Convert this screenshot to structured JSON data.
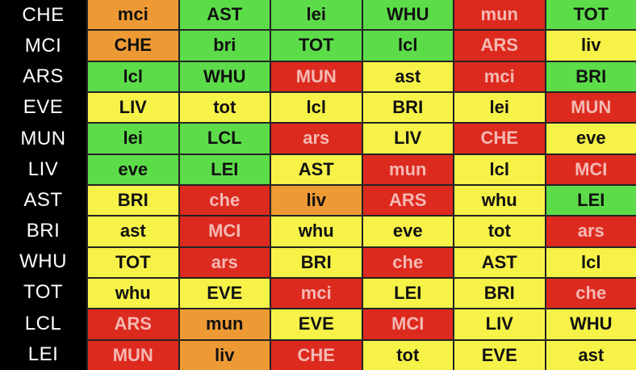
{
  "colors": {
    "green": "#5ddc4a",
    "yellow": "#f7f248",
    "red": "#dd2a1e",
    "orange": "#ee9a34",
    "sidebar": "#000000"
  },
  "teams": [
    "CHE",
    "MCI",
    "ARS",
    "EVE",
    "MUN",
    "LIV",
    "AST",
    "BRI",
    "WHU",
    "TOT",
    "LCL",
    "LEI"
  ],
  "rows": [
    [
      {
        "t": "mci",
        "c": "orange"
      },
      {
        "t": "AST",
        "c": "green"
      },
      {
        "t": "lei",
        "c": "green"
      },
      {
        "t": "WHU",
        "c": "green"
      },
      {
        "t": "mun",
        "c": "red"
      },
      {
        "t": "TOT",
        "c": "green"
      }
    ],
    [
      {
        "t": "CHE",
        "c": "orange"
      },
      {
        "t": "bri",
        "c": "green"
      },
      {
        "t": "TOT",
        "c": "green"
      },
      {
        "t": "lcl",
        "c": "green"
      },
      {
        "t": "ARS",
        "c": "red"
      },
      {
        "t": "liv",
        "c": "yellow"
      }
    ],
    [
      {
        "t": "lcl",
        "c": "green"
      },
      {
        "t": "WHU",
        "c": "green"
      },
      {
        "t": "MUN",
        "c": "red"
      },
      {
        "t": "ast",
        "c": "yellow"
      },
      {
        "t": "mci",
        "c": "red"
      },
      {
        "t": "BRI",
        "c": "green"
      }
    ],
    [
      {
        "t": "LIV",
        "c": "yellow"
      },
      {
        "t": "tot",
        "c": "yellow"
      },
      {
        "t": "lcl",
        "c": "yellow"
      },
      {
        "t": "BRI",
        "c": "yellow"
      },
      {
        "t": "lei",
        "c": "yellow"
      },
      {
        "t": "MUN",
        "c": "red"
      }
    ],
    [
      {
        "t": "lei",
        "c": "green"
      },
      {
        "t": "LCL",
        "c": "green"
      },
      {
        "t": "ars",
        "c": "red"
      },
      {
        "t": "LIV",
        "c": "yellow"
      },
      {
        "t": "CHE",
        "c": "red"
      },
      {
        "t": "eve",
        "c": "yellow"
      }
    ],
    [
      {
        "t": "eve",
        "c": "green"
      },
      {
        "t": "LEI",
        "c": "green"
      },
      {
        "t": "AST",
        "c": "yellow"
      },
      {
        "t": "mun",
        "c": "red"
      },
      {
        "t": "lcl",
        "c": "yellow"
      },
      {
        "t": "MCI",
        "c": "red"
      }
    ],
    [
      {
        "t": "BRI",
        "c": "yellow"
      },
      {
        "t": "che",
        "c": "red"
      },
      {
        "t": "liv",
        "c": "orange"
      },
      {
        "t": "ARS",
        "c": "red"
      },
      {
        "t": "whu",
        "c": "yellow"
      },
      {
        "t": "LEI",
        "c": "green"
      }
    ],
    [
      {
        "t": "ast",
        "c": "yellow"
      },
      {
        "t": "MCI",
        "c": "red"
      },
      {
        "t": "whu",
        "c": "yellow"
      },
      {
        "t": "eve",
        "c": "yellow"
      },
      {
        "t": "tot",
        "c": "yellow"
      },
      {
        "t": "ars",
        "c": "red"
      }
    ],
    [
      {
        "t": "TOT",
        "c": "yellow"
      },
      {
        "t": "ars",
        "c": "red"
      },
      {
        "t": "BRI",
        "c": "yellow"
      },
      {
        "t": "che",
        "c": "red"
      },
      {
        "t": "AST",
        "c": "yellow"
      },
      {
        "t": "lcl",
        "c": "yellow"
      }
    ],
    [
      {
        "t": "whu",
        "c": "yellow"
      },
      {
        "t": "EVE",
        "c": "yellow"
      },
      {
        "t": "mci",
        "c": "red"
      },
      {
        "t": "LEI",
        "c": "yellow"
      },
      {
        "t": "BRI",
        "c": "yellow"
      },
      {
        "t": "che",
        "c": "red"
      }
    ],
    [
      {
        "t": "ARS",
        "c": "red"
      },
      {
        "t": "mun",
        "c": "orange"
      },
      {
        "t": "EVE",
        "c": "yellow"
      },
      {
        "t": "MCI",
        "c": "red"
      },
      {
        "t": "LIV",
        "c": "yellow"
      },
      {
        "t": "WHU",
        "c": "yellow"
      }
    ],
    [
      {
        "t": "MUN",
        "c": "red"
      },
      {
        "t": "liv",
        "c": "orange"
      },
      {
        "t": "CHE",
        "c": "red"
      },
      {
        "t": "tot",
        "c": "yellow"
      },
      {
        "t": "EVE",
        "c": "yellow"
      },
      {
        "t": "ast",
        "c": "yellow"
      }
    ]
  ]
}
